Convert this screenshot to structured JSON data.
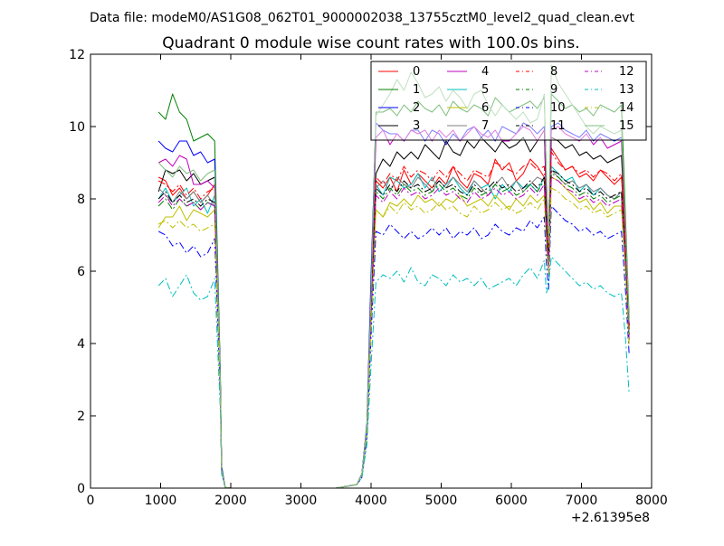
{
  "chart_data": {
    "type": "line",
    "suptitle": "Data file: modeM0/AS1G08_062T01_9000002038_13755cztM0_level2_quad_clean.evt",
    "title": "Quadrant 0 module wise count rates with 100.0s bins.",
    "xlabel": "",
    "ylabel": "",
    "x_offset_label": "+2.61395e8",
    "xlim": [
      0,
      8000
    ],
    "ylim": [
      0,
      12
    ],
    "xticks": [
      "0",
      "1000",
      "2000",
      "3000",
      "4000",
      "5000",
      "6000",
      "7000",
      "8000"
    ],
    "yticks": [
      "0",
      "2",
      "4",
      "6",
      "8",
      "10",
      "12"
    ],
    "grid": false,
    "legend_position": "top-right",
    "legend_columns": 4,
    "x": [
      970,
      1070,
      1170,
      1270,
      1370,
      1470,
      1570,
      1670,
      1770,
      1850,
      1870,
      1920,
      2000,
      2100,
      2500,
      3000,
      3500,
      3800,
      3870,
      3940,
      4000,
      4070,
      4170,
      4270,
      4370,
      4470,
      4570,
      4670,
      4770,
      4870,
      4970,
      5070,
      5170,
      5270,
      5370,
      5470,
      5570,
      5670,
      5770,
      5870,
      5970,
      6070,
      6170,
      6270,
      6370,
      6470,
      6500,
      6530,
      6570,
      6670,
      6770,
      6870,
      6970,
      7070,
      7170,
      7270,
      7370,
      7470,
      7570,
      7630,
      7680
    ],
    "series": [
      {
        "name": "0",
        "color": "#ff0000",
        "dash": "solid",
        "values": [
          8.6,
          8.5,
          8.1,
          8.3,
          8.0,
          8.2,
          7.9,
          8.1,
          8.4,
          3.0,
          0.5,
          0.02,
          0,
          0,
          0,
          0,
          0,
          0.1,
          0.4,
          1.6,
          4.8,
          8.5,
          8.3,
          8.6,
          8.2,
          8.8,
          8.4,
          8.7,
          8.5,
          8.3,
          8.6,
          8.4,
          8.9,
          8.5,
          8.3,
          8.7,
          8.6,
          8.4,
          9.1,
          8.8,
          9.0,
          8.5,
          8.7,
          9.1,
          8.9,
          8.6,
          7.3,
          6.4,
          9.4,
          9.1,
          8.8,
          8.9,
          8.6,
          8.7,
          8.5,
          8.8,
          8.6,
          8.4,
          8.6,
          6.6,
          4.4
        ]
      },
      {
        "name": "1",
        "color": "#008000",
        "dash": "solid",
        "values": [
          10.4,
          10.2,
          10.9,
          10.4,
          10.2,
          9.6,
          9.7,
          9.8,
          9.6,
          3.3,
          0.6,
          0.02,
          0,
          0,
          0,
          0,
          0,
          0.1,
          0.4,
          1.7,
          5.6,
          10.4,
          10.4,
          10.5,
          10.3,
          10.6,
          10.4,
          10.7,
          10.5,
          10.4,
          10.6,
          10.3,
          10.7,
          10.5,
          10.4,
          10.6,
          10.5,
          10.3,
          10.8,
          10.6,
          10.4,
          10.5,
          10.6,
          10.7,
          10.5,
          10.8,
          8.6,
          6.8,
          10.9,
          10.7,
          10.5,
          10.6,
          10.4,
          10.5,
          10.3,
          10.6,
          10.5,
          10.4,
          10.6,
          7.4,
          4.7
        ]
      },
      {
        "name": "2",
        "color": "#0000ff",
        "dash": "solid",
        "values": [
          9.6,
          9.4,
          9.3,
          9.6,
          9.6,
          9.2,
          9.3,
          9.0,
          9.1,
          3.2,
          0.6,
          0.02,
          0,
          0,
          0,
          0,
          0,
          0.1,
          0.4,
          1.8,
          5.9,
          10.1,
          9.9,
          9.8,
          9.8,
          9.6,
          9.9,
          9.9,
          9.6,
          9.9,
          9.8,
          9.5,
          9.8,
          9.6,
          9.9,
          10.0,
          9.7,
          9.9,
          9.6,
          10.0,
          9.9,
          9.8,
          10.1,
          10.0,
          9.8,
          10.0,
          8.2,
          6.8,
          10.0,
          10.1,
          9.9,
          9.8,
          9.7,
          9.9,
          9.6,
          9.8,
          9.7,
          9.6,
          9.7,
          7.2,
          4.5
        ]
      },
      {
        "name": "3",
        "color": "#000000",
        "dash": "solid",
        "values": [
          8.2,
          8.8,
          8.7,
          8.8,
          8.5,
          8.7,
          8.4,
          8.5,
          8.6,
          3.1,
          0.5,
          0.02,
          0,
          0,
          0,
          0,
          0,
          0.1,
          0.4,
          1.7,
          5.1,
          8.7,
          9.1,
          8.9,
          9.3,
          9.1,
          9.3,
          9.1,
          9.5,
          9.3,
          9.1,
          9.6,
          9.3,
          9.2,
          9.6,
          9.4,
          9.7,
          9.5,
          9.3,
          9.6,
          9.4,
          9.5,
          9.7,
          9.3,
          9.6,
          9.9,
          7.7,
          6.4,
          9.7,
          9.6,
          9.4,
          9.5,
          9.2,
          9.3,
          9.1,
          9.2,
          9.0,
          9.1,
          9.2,
          6.9,
          4.5
        ]
      },
      {
        "name": "4",
        "color": "#bf00bf",
        "dash": "solid",
        "values": [
          9.0,
          9.1,
          8.9,
          9.2,
          9.1,
          8.4,
          8.4,
          8.5,
          8.3,
          3.0,
          0.5,
          0.02,
          0,
          0,
          0,
          0,
          0,
          0.1,
          0.4,
          1.7,
          5.3,
          9.7,
          9.9,
          9.5,
          9.8,
          9.6,
          9.9,
          9.8,
          9.9,
          9.6,
          9.9,
          9.7,
          9.9,
          9.6,
          9.8,
          10.0,
          9.8,
          9.7,
          9.9,
          9.6,
          9.6,
          9.8,
          10.0,
          9.9,
          9.6,
          9.9,
          8.1,
          6.7,
          9.9,
          10.0,
          9.8,
          9.7,
          9.6,
          9.8,
          9.5,
          9.7,
          9.4,
          9.5,
          9.6,
          7.0,
          4.6
        ]
      },
      {
        "name": "5",
        "color": "#00bfbf",
        "dash": "solid",
        "values": [
          8.0,
          8.3,
          7.9,
          8.1,
          8.3,
          7.8,
          8.0,
          7.6,
          8.1,
          2.9,
          0.5,
          0.02,
          0,
          0,
          0,
          0,
          0,
          0.1,
          0.4,
          1.6,
          4.7,
          8.4,
          8.1,
          8.6,
          8.5,
          8.3,
          8.4,
          8.7,
          8.3,
          8.6,
          8.2,
          8.4,
          8.6,
          8.3,
          8.1,
          8.5,
          8.3,
          8.4,
          8.0,
          8.4,
          8.2,
          8.5,
          8.3,
          8.4,
          8.2,
          8.6,
          7.1,
          6.1,
          8.9,
          8.7,
          8.5,
          8.6,
          8.2,
          8.4,
          8.1,
          8.3,
          8.1,
          8.0,
          8.2,
          6.3,
          4.2
        ]
      },
      {
        "name": "6",
        "color": "#bfbf00",
        "dash": "solid",
        "values": [
          7.2,
          7.5,
          7.5,
          7.8,
          7.4,
          7.7,
          7.6,
          7.5,
          7.7,
          2.8,
          0.5,
          0.02,
          0,
          0,
          0,
          0,
          0,
          0.1,
          0.4,
          1.5,
          4.6,
          7.7,
          7.5,
          7.9,
          7.8,
          8.0,
          7.8,
          8.1,
          7.9,
          8.0,
          7.8,
          8.0,
          7.9,
          8.1,
          7.8,
          7.9,
          8.0,
          7.8,
          8.1,
          7.9,
          7.7,
          8.0,
          7.8,
          8.1,
          7.9,
          8.1,
          6.9,
          6.0,
          8.6,
          8.5,
          8.3,
          8.1,
          7.9,
          8.0,
          7.7,
          7.9,
          7.6,
          7.8,
          7.8,
          6.0,
          4.0
        ]
      },
      {
        "name": "7",
        "color": "#7f7f7f",
        "dash": "solid",
        "values": [
          8.3,
          8.1,
          7.9,
          8.2,
          8.0,
          8.2,
          7.9,
          8.1,
          7.8,
          2.9,
          0.5,
          0.02,
          0,
          0,
          0,
          0,
          0,
          0.1,
          0.4,
          1.6,
          4.8,
          8.3,
          8.5,
          8.2,
          8.6,
          8.4,
          8.3,
          8.6,
          8.4,
          8.2,
          8.5,
          8.3,
          8.6,
          8.4,
          8.2,
          8.5,
          8.3,
          8.1,
          8.4,
          8.6,
          8.3,
          8.5,
          8.2,
          8.4,
          8.6,
          8.5,
          7.0,
          6.2,
          8.8,
          8.6,
          8.4,
          8.5,
          8.3,
          8.4,
          8.2,
          8.3,
          8.1,
          8.0,
          8.2,
          6.2,
          4.1
        ]
      },
      {
        "name": "8",
        "color": "#ff0000",
        "dash": "dashdot",
        "values": [
          8.5,
          8.4,
          8.2,
          8.4,
          8.1,
          8.3,
          8.0,
          8.2,
          8.3,
          3.0,
          0.5,
          0.02,
          0,
          0,
          0,
          0,
          0,
          0.1,
          0.4,
          1.6,
          4.9,
          8.6,
          8.4,
          8.7,
          8.5,
          8.9,
          8.6,
          8.8,
          8.7,
          8.5,
          8.8,
          8.6,
          8.9,
          8.7,
          8.5,
          8.8,
          8.7,
          8.6,
          9.0,
          8.9,
          8.8,
          8.7,
          8.9,
          9.0,
          8.8,
          8.9,
          7.4,
          6.5,
          9.3,
          9.0,
          8.8,
          8.9,
          8.7,
          8.8,
          8.6,
          8.8,
          8.7,
          8.5,
          8.7,
          6.7,
          4.4
        ]
      },
      {
        "name": "9",
        "color": "#008000",
        "dash": "dashdot",
        "values": [
          7.8,
          8.0,
          7.7,
          8.0,
          7.8,
          7.9,
          7.7,
          7.9,
          7.8,
          2.9,
          0.5,
          0.02,
          0,
          0,
          0,
          0,
          0,
          0.1,
          0.4,
          1.6,
          4.7,
          8.2,
          8.0,
          8.3,
          8.1,
          8.4,
          8.2,
          8.3,
          8.1,
          8.2,
          8.4,
          8.2,
          8.3,
          8.1,
          8.0,
          8.3,
          8.1,
          8.2,
          8.4,
          8.2,
          8.3,
          8.1,
          8.2,
          8.4,
          8.2,
          8.5,
          7.1,
          6.1,
          8.7,
          8.6,
          8.4,
          8.3,
          8.1,
          8.2,
          8.0,
          8.1,
          7.9,
          8.0,
          8.1,
          6.1,
          4.1
        ]
      },
      {
        "name": "10",
        "color": "#0000ff",
        "dash": "dashdot",
        "values": [
          7.1,
          7.0,
          6.7,
          6.8,
          6.5,
          6.7,
          6.4,
          6.5,
          6.9,
          2.6,
          0.4,
          0.02,
          0,
          0,
          0,
          0,
          0,
          0.1,
          0.3,
          1.4,
          4.2,
          7.1,
          7.0,
          7.3,
          7.1,
          6.9,
          7.1,
          6.9,
          7.0,
          7.2,
          7.0,
          7.2,
          6.9,
          7.1,
          7.0,
          7.2,
          6.9,
          7.0,
          7.3,
          7.1,
          7.0,
          7.2,
          7.1,
          7.4,
          7.2,
          7.5,
          6.2,
          5.5,
          7.8,
          7.6,
          7.4,
          7.3,
          7.1,
          7.2,
          7.0,
          7.1,
          6.9,
          7.0,
          7.1,
          5.4,
          3.7
        ]
      },
      {
        "name": "11",
        "color": "#000000",
        "dash": "dashdot",
        "values": [
          8.0,
          8.2,
          7.9,
          8.1,
          7.9,
          8.0,
          7.8,
          8.0,
          7.9,
          2.9,
          0.5,
          0.02,
          0,
          0,
          0,
          0,
          0,
          0.1,
          0.4,
          1.6,
          4.8,
          8.3,
          8.1,
          8.4,
          8.2,
          8.5,
          8.3,
          8.4,
          8.2,
          8.3,
          8.5,
          8.3,
          8.4,
          8.2,
          8.1,
          8.4,
          8.2,
          8.3,
          8.5,
          8.3,
          8.4,
          8.2,
          8.3,
          8.5,
          8.3,
          8.6,
          7.2,
          6.2,
          8.8,
          8.7,
          8.5,
          8.4,
          8.2,
          8.3,
          8.1,
          8.2,
          8.0,
          8.1,
          8.2,
          6.2,
          4.2
        ]
      },
      {
        "name": "12",
        "color": "#bf00bf",
        "dash": "dashdot",
        "values": [
          7.9,
          8.1,
          7.8,
          8.0,
          7.8,
          7.9,
          7.7,
          7.9,
          7.8,
          2.9,
          0.5,
          0.02,
          0,
          0,
          0,
          0,
          0,
          0.1,
          0.4,
          1.6,
          4.7,
          8.1,
          7.9,
          8.2,
          8.0,
          8.3,
          8.1,
          8.2,
          8.0,
          8.1,
          8.3,
          8.1,
          8.2,
          8.0,
          7.9,
          8.2,
          8.0,
          8.1,
          8.3,
          8.1,
          8.2,
          8.0,
          8.1,
          8.3,
          8.1,
          8.4,
          7.0,
          6.1,
          8.6,
          8.5,
          8.3,
          8.2,
          8.0,
          8.1,
          7.9,
          8.0,
          7.8,
          7.9,
          8.0,
          6.1,
          4.1
        ]
      },
      {
        "name": "13",
        "color": "#00bfbf",
        "dash": "dashdot",
        "values": [
          5.6,
          5.8,
          5.3,
          5.6,
          5.9,
          5.4,
          5.2,
          5.3,
          5.8,
          2.2,
          0.4,
          0.02,
          0,
          0,
          0,
          0,
          0,
          0.1,
          0.3,
          1.2,
          3.4,
          5.7,
          5.9,
          5.8,
          6.0,
          5.7,
          6.1,
          5.7,
          5.6,
          5.9,
          5.8,
          5.6,
          5.9,
          5.7,
          5.8,
          5.6,
          5.8,
          5.5,
          5.6,
          5.7,
          5.8,
          5.6,
          5.9,
          6.1,
          5.8,
          6.3,
          5.4,
          5.6,
          6.4,
          6.2,
          6.0,
          5.8,
          5.6,
          5.7,
          5.5,
          5.6,
          5.4,
          5.3,
          5.4,
          4.1,
          2.6
        ]
      },
      {
        "name": "14",
        "color": "#bfbf00",
        "dash": "dashdot",
        "values": [
          7.3,
          7.4,
          7.2,
          7.4,
          7.2,
          7.3,
          7.1,
          7.2,
          7.3,
          2.7,
          0.5,
          0.02,
          0,
          0,
          0,
          0,
          0,
          0.1,
          0.4,
          1.5,
          4.4,
          7.7,
          7.5,
          7.8,
          7.6,
          7.9,
          7.7,
          7.8,
          7.6,
          7.7,
          7.9,
          7.7,
          7.8,
          7.6,
          7.5,
          7.8,
          7.6,
          7.7,
          7.9,
          7.7,
          7.8,
          7.6,
          7.7,
          7.9,
          7.7,
          8.0,
          6.7,
          5.9,
          8.3,
          8.2,
          8.0,
          7.9,
          7.7,
          7.8,
          7.6,
          7.7,
          7.5,
          7.6,
          7.7,
          5.9,
          3.9
        ]
      },
      {
        "name": "15",
        "color": "#7fbf7f",
        "dash": "solid",
        "values": [
          9.0,
          8.8,
          8.6,
          8.9,
          8.7,
          8.8,
          8.5,
          8.7,
          8.8,
          3.1,
          0.5,
          0.02,
          0,
          0,
          0,
          0,
          0,
          0.1,
          0.4,
          1.7,
          5.4,
          10.3,
          10.6,
          10.9,
          11.3,
          11.0,
          11.5,
          11.2,
          10.8,
          10.9,
          11.1,
          10.7,
          11.0,
          10.8,
          10.5,
          10.9,
          11.0,
          10.6,
          10.3,
          10.6,
          10.4,
          10.2,
          10.4,
          10.1,
          10.2,
          10.9,
          8.6,
          6.8,
          11.7,
          11.2,
          10.9,
          10.6,
          10.3,
          10.0,
          9.8,
          10.0,
          9.9,
          9.8,
          9.9,
          7.2,
          4.6
        ]
      }
    ]
  }
}
